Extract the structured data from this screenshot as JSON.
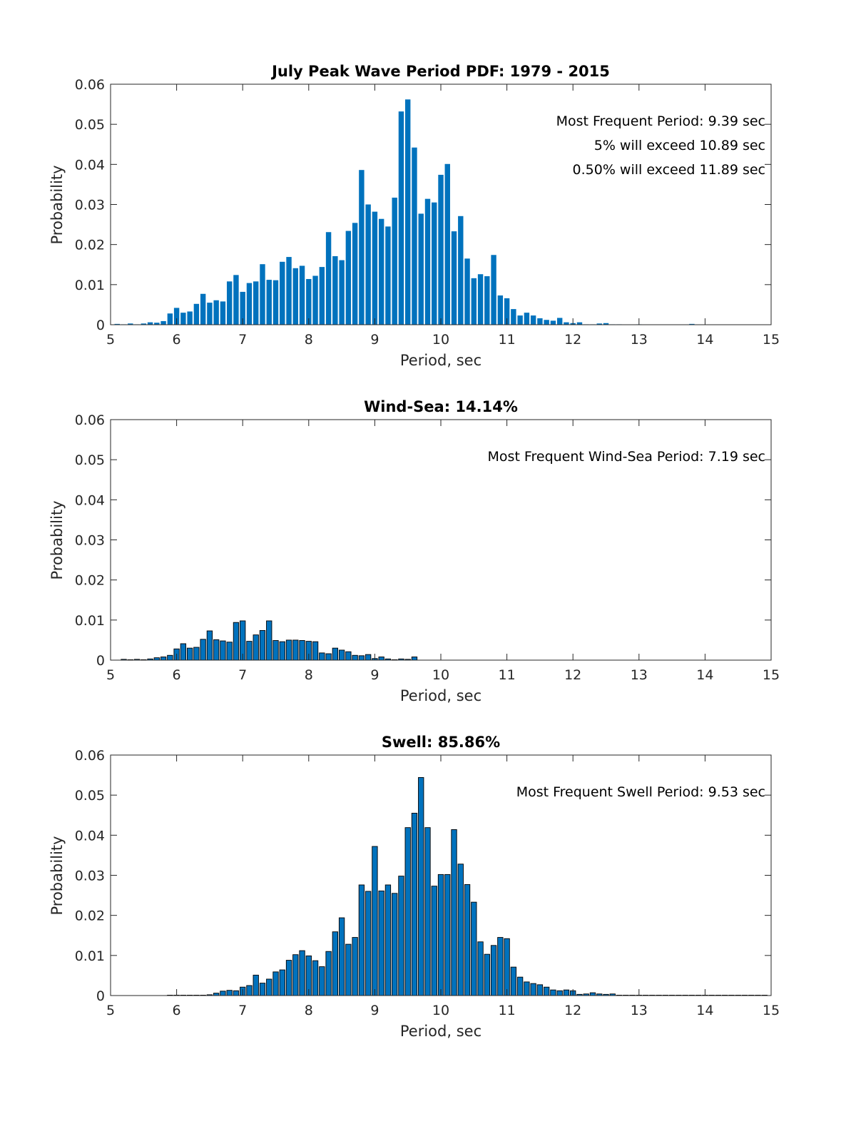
{
  "colors": {
    "bar": "#0072bd",
    "edge": "#000000",
    "axis": "#262626"
  },
  "chart_data": [
    {
      "type": "bar",
      "title": "July Peak Wave Period PDF: 1979 - 2015",
      "xlabel": "Period, sec",
      "ylabel": "Probability",
      "xlim": [
        5,
        15
      ],
      "ylim": [
        0,
        0.06
      ],
      "xticks": [
        "5",
        "6",
        "7",
        "8",
        "9",
        "10",
        "11",
        "12",
        "13",
        "14",
        "15"
      ],
      "yticks": [
        "0",
        "0.01",
        "0.02",
        "0.03",
        "0.04",
        "0.05",
        "0.06"
      ],
      "bar_start": 5.1,
      "bar_step": 0.1,
      "bar_edges": false,
      "values": [
        0.0002,
        0.0001,
        0.0003,
        0.0001,
        0.0003,
        0.0006,
        0.0005,
        0.0009,
        0.0028,
        0.0042,
        0.003,
        0.0033,
        0.0052,
        0.0077,
        0.0055,
        0.0061,
        0.0058,
        0.0108,
        0.0124,
        0.0082,
        0.0104,
        0.0108,
        0.0151,
        0.0112,
        0.0111,
        0.0157,
        0.0169,
        0.0141,
        0.0147,
        0.0114,
        0.0122,
        0.0144,
        0.0231,
        0.0171,
        0.0161,
        0.0234,
        0.0254,
        0.0386,
        0.03,
        0.0282,
        0.0264,
        0.0245,
        0.0317,
        0.0532,
        0.0562,
        0.0442,
        0.0277,
        0.0314,
        0.0305,
        0.0374,
        0.0401,
        0.0233,
        0.0271,
        0.0165,
        0.0116,
        0.0126,
        0.0121,
        0.0174,
        0.0073,
        0.0066,
        0.0039,
        0.0023,
        0.003,
        0.0023,
        0.0016,
        0.0012,
        0.001,
        0.0017,
        0.0006,
        0.0004,
        0.0006,
        0.0001,
        0.0001,
        0.0003,
        0.0004,
        0.0001,
        0.0001,
        0.0,
        0.0,
        0.0001,
        0.0,
        0.0,
        0.0,
        0.0,
        0.0,
        0.0,
        0.0,
        0.0002,
        0.0,
        0.0,
        0.0,
        0.0,
        0.0,
        0.0,
        0.0,
        0.0,
        0.0,
        0.0,
        0.0
      ],
      "annotations": [
        "Most Frequent Period: 9.39 sec",
        "5% will exceed 10.89 sec",
        "0.50% will exceed 11.89 sec"
      ]
    },
    {
      "type": "bar",
      "title": "Wind-Sea: 14.14%",
      "xlabel": "Period, sec",
      "ylabel": "Probability",
      "xlim": [
        5,
        15
      ],
      "ylim": [
        0,
        0.06
      ],
      "xticks": [
        "5",
        "6",
        "7",
        "8",
        "9",
        "10",
        "11",
        "12",
        "13",
        "14",
        "15"
      ],
      "yticks": [
        "0",
        "0.01",
        "0.02",
        "0.03",
        "0.04",
        "0.05",
        "0.06"
      ],
      "bar_start": 5.2,
      "bar_step": 0.1,
      "bar_edges": true,
      "values": [
        0.0002,
        0.0001,
        0.0002,
        0.0001,
        0.0003,
        0.0006,
        0.0008,
        0.0012,
        0.0028,
        0.0041,
        0.003,
        0.0032,
        0.0052,
        0.0073,
        0.0051,
        0.0048,
        0.0045,
        0.0094,
        0.0098,
        0.0047,
        0.0063,
        0.0074,
        0.0098,
        0.0049,
        0.0046,
        0.005,
        0.005,
        0.0049,
        0.0047,
        0.0046,
        0.0018,
        0.0016,
        0.003,
        0.0025,
        0.0021,
        0.0012,
        0.0011,
        0.0014,
        0.0004,
        0.0008,
        0.0003,
        0.0001,
        0.0003,
        0.0002,
        0.0008,
        0.0,
        0.0,
        0.0,
        0.0,
        0.0,
        0.0,
        0.0,
        0.0,
        0.0,
        0.0,
        0.0,
        0.0,
        0.0,
        0.0,
        0.0,
        0.0,
        0.0,
        0.0,
        0.0,
        0.0,
        0.0,
        0.0,
        0.0,
        0.0,
        0.0,
        0.0,
        0.0,
        0.0,
        0.0,
        0.0,
        0.0,
        0.0,
        0.0,
        0.0,
        0.0,
        0.0,
        0.0,
        0.0,
        0.0,
        0.0,
        0.0,
        0.0,
        0.0,
        0.0,
        0.0,
        0.0,
        0.0,
        0.0,
        0.0,
        0.0,
        0.0,
        0.0,
        0.0
      ],
      "annotations": [
        "Most Frequent Wind-Sea Period: 7.19 sec"
      ]
    },
    {
      "type": "bar",
      "title": "Swell: 85.86%",
      "xlabel": "Period, sec",
      "ylabel": "Probability",
      "xlim": [
        5,
        15
      ],
      "ylim": [
        0,
        0.06
      ],
      "xticks": [
        "5",
        "6",
        "7",
        "8",
        "9",
        "10",
        "11",
        "12",
        "13",
        "14",
        "15"
      ],
      "yticks": [
        "0",
        "0.01",
        "0.02",
        "0.03",
        "0.04",
        "0.05",
        "0.06"
      ],
      "bar_start": 5.9,
      "bar_step": 0.1,
      "bar_edges": true,
      "values": [
        0.0001,
        0.0001,
        0.0001,
        0.0001,
        0.0001,
        0.0001,
        0.0002,
        0.0006,
        0.0011,
        0.0013,
        0.0012,
        0.0021,
        0.0025,
        0.0051,
        0.0031,
        0.0041,
        0.0059,
        0.0064,
        0.0088,
        0.0102,
        0.0112,
        0.0099,
        0.0087,
        0.0072,
        0.011,
        0.0159,
        0.0194,
        0.0128,
        0.0145,
        0.0276,
        0.026,
        0.0372,
        0.0261,
        0.0276,
        0.0255,
        0.0298,
        0.0419,
        0.0455,
        0.0544,
        0.0419,
        0.0273,
        0.0302,
        0.0302,
        0.0414,
        0.0328,
        0.0277,
        0.0233,
        0.0134,
        0.0103,
        0.0125,
        0.0145,
        0.0142,
        0.0071,
        0.0046,
        0.0034,
        0.003,
        0.0027,
        0.0021,
        0.0014,
        0.0012,
        0.0014,
        0.0012,
        0.0003,
        0.0004,
        0.0007,
        0.0004,
        0.0003,
        0.0004,
        0.0001,
        0.0001,
        0.0001,
        0.0001,
        0.0001,
        0.0001,
        0.0001,
        0.0001,
        0.0001,
        0.0001,
        0.0001,
        0.0001,
        0.0001,
        0.0001,
        0.0001,
        0.0001,
        0.0001,
        0.0001,
        0.0001,
        0.0001,
        0.0001,
        0.0001,
        0.0001
      ],
      "annotations": [
        "Most Frequent Swell Period: 9.53 sec"
      ]
    }
  ]
}
